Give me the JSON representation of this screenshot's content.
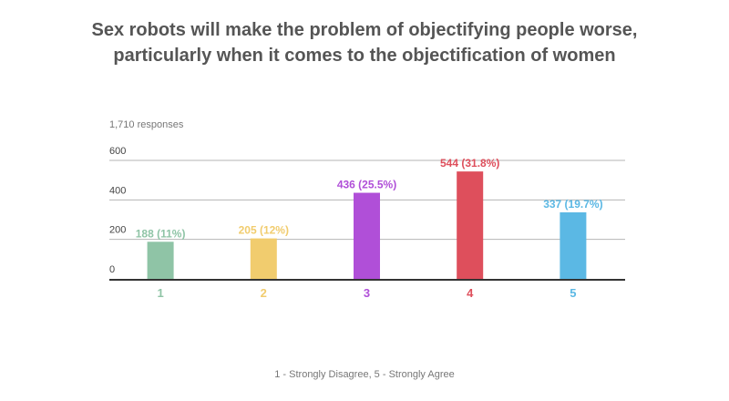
{
  "chart_data": {
    "type": "bar",
    "title_line1": "Sex robots will make the problem of objectifying people worse,",
    "title_line2": "particularly when it comes to the objectification of women",
    "subtitle": "1,710 responses",
    "xlabel": "1 - Strongly Disagree, 5 - Strongly Agree",
    "ylabel": "",
    "categories": [
      "1",
      "2",
      "3",
      "4",
      "5"
    ],
    "values": [
      188,
      205,
      436,
      544,
      337
    ],
    "data_labels": [
      "188 (11%)",
      "205 (12%)",
      "436 (25.5%)",
      "544 (31.8%)",
      "337 (19.7%)"
    ],
    "colors": [
      "#8fc4a6",
      "#f1cc6e",
      "#b04fd8",
      "#de4f5c",
      "#5bb8e4"
    ],
    "yticks": [
      0,
      200,
      400,
      600
    ],
    "ytick_labels": [
      "0",
      "200",
      "400",
      "600"
    ],
    "ylim": [
      0,
      600
    ],
    "grid": true,
    "legend": "none"
  }
}
